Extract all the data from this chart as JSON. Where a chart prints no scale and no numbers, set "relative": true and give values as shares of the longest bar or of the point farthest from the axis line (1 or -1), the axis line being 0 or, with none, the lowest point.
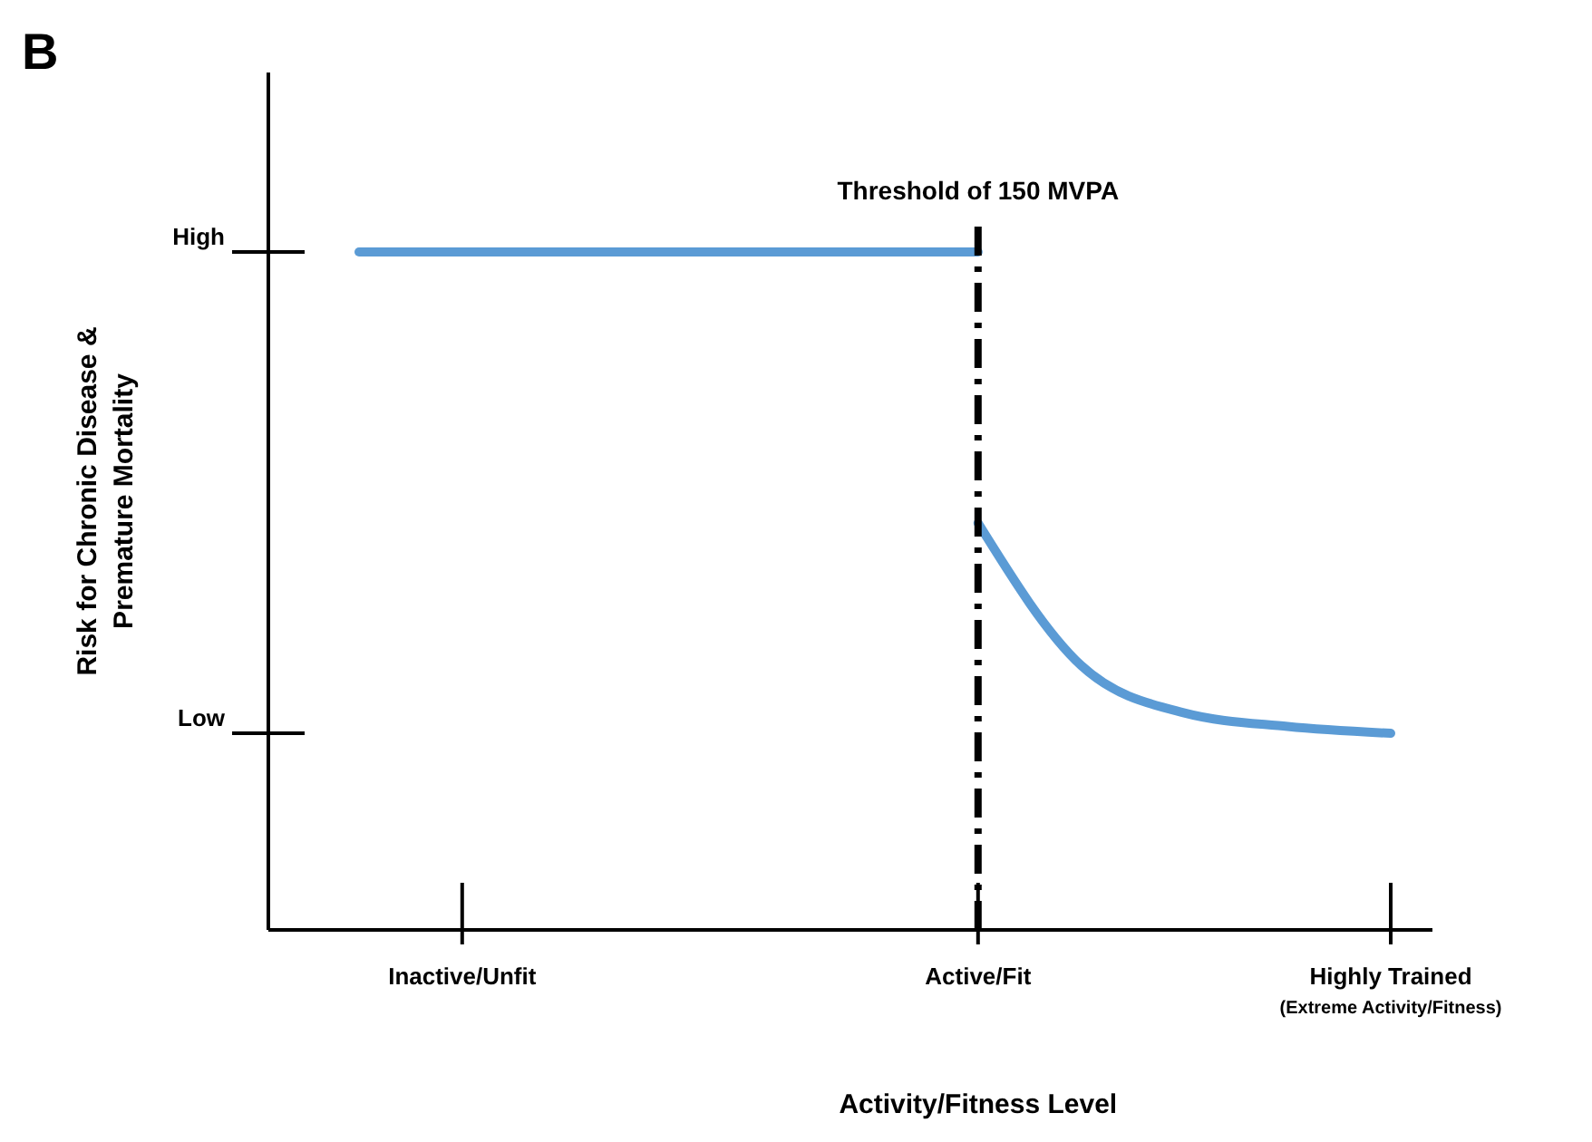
{
  "chart_data": {
    "type": "line",
    "relative": true,
    "xlabel": "Activity/Fitness Level",
    "ylabel": "Risk for Chronic Disease &\nPremature Mortality",
    "categories": [
      null,
      "Inactive/Unfit",
      null,
      null,
      null,
      null,
      "Active/Fit",
      null,
      null,
      null,
      "Highly Trained $_{(Extreme Activity/Fitness)}$"
    ],
    "series": [
      {
        "color": "#5b9bd5",
        "values": [
          1,
          1,
          1,
          1,
          1,
          1,
          1,
          null,
          null,
          null,
          null
        ]
      },
      {
        "color": "#5b9bd5",
        "values": [
          null,
          null,
          null,
          null,
          null,
          null,
          0.6,
          0.39,
          0.32,
          0.3,
          0.29
        ]
      }
    ],
    "ref_lines": [
      {
        "axis": "x",
        "value": "Active/Fit",
        "label": "Threshold of 150 MVPA",
        "color": "#000000",
        "line_style": "dashed"
      },
      {
        "axis": "y",
        "value": 1,
        "label": "High",
        "color": "#000000",
        "line_style": "solid"
      },
      {
        "axis": "y",
        "value": 0.29,
        "label": "Low",
        "color": "#000000",
        "line_style": "solid"
      }
    ],
    "annotations": [
      "B"
    ],
    "marker": "none",
    "line_style": "solid"
  }
}
